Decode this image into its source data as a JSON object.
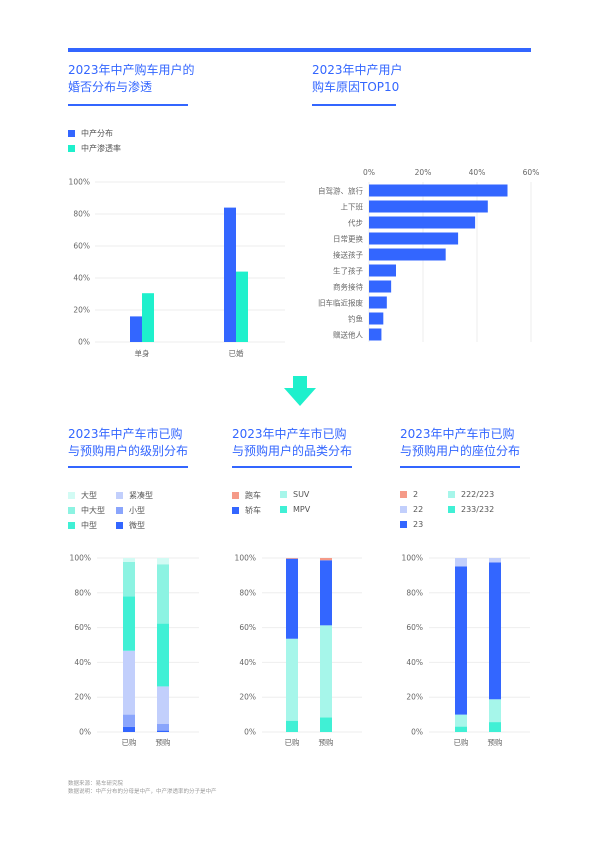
{
  "colors": {
    "blue": "#3366ff",
    "teal": "#1ef0cc",
    "mid_teal": "#8cf3e2",
    "light_teal": "#a6f6ea",
    "pale_teal": "#d2fbf4",
    "lavender": "#c2cffc",
    "mid_blue": "#8aa5fc",
    "salmon": "#f59a88",
    "grid": "#eeeeee"
  },
  "titles": {
    "c1": [
      "2023年中产购车用户的",
      "婚否分布与渗透"
    ],
    "c2": [
      "2023年中产用户",
      "购车原因TOP10"
    ],
    "c3": [
      "2023年中产车市已购",
      "与预购用户的级别分布"
    ],
    "c4": [
      "2023年中产车市已购",
      "与预购用户的品类分布"
    ],
    "c5": [
      "2023年中产车市已购",
      "与预购用户的座位分布"
    ]
  },
  "footer": {
    "source": "数据来源：易车研究院",
    "note": "数据说明：中产分布的分母是中产，中产渗透率的分子是中产"
  },
  "chart_data": [
    {
      "type": "bar",
      "title": "2023年中产购车用户的婚否分布与渗透",
      "categories": [
        "单身",
        "已婚"
      ],
      "series": [
        {
          "name": "中产分布",
          "color": "#3366ff",
          "values": [
            16,
            84
          ]
        },
        {
          "name": "中产渗透率",
          "color": "#1ef0cc",
          "values": [
            30.5,
            44
          ]
        }
      ],
      "ylim": [
        0,
        100
      ],
      "yticks": [
        "0%",
        "20%",
        "40%",
        "60%",
        "80%",
        "100%"
      ],
      "legend": "top-left",
      "grid": true
    },
    {
      "type": "bar",
      "orientation": "horizontal",
      "title": "2023年中产用户购车原因TOP10",
      "categories": [
        "自驾游、旅行",
        "上下班",
        "代步",
        "日常更换",
        "接送孩子",
        "生了孩子",
        "商务接待",
        "旧车临近报废",
        "钓鱼",
        "赠送他人"
      ],
      "values": [
        51.3,
        44,
        39.3,
        33,
        28.4,
        10,
        8.2,
        6.6,
        5.3,
        4.6
      ],
      "xlim": [
        0,
        60
      ],
      "xticks": [
        "0%",
        "20%",
        "40%",
        "60%"
      ],
      "grid": true
    },
    {
      "type": "bar",
      "stacked": true,
      "title": "2023年中产车市已购与预购用户的级别分布",
      "categories": [
        "已购",
        "预购"
      ],
      "series": [
        {
          "name": "微型",
          "color": "#3366ff",
          "values": [
            2.9,
            0.8
          ]
        },
        {
          "name": "小型",
          "color": "#8aa5fc",
          "values": [
            7.1,
            3.8
          ]
        },
        {
          "name": "紧凑型",
          "color": "#c2cffc",
          "values": [
            36.7,
            21.6
          ]
        },
        {
          "name": "中型",
          "color": "#40f0d5",
          "values": [
            31.3,
            36.1
          ]
        },
        {
          "name": "中大型",
          "color": "#8cf3e2",
          "values": [
            19.7,
            34.1
          ]
        },
        {
          "name": "大型",
          "color": "#d2fbf4",
          "values": [
            2.3,
            3.6
          ]
        }
      ],
      "legend_order": [
        "大型",
        "紧凑型",
        "中大型",
        "小型",
        "中型",
        "微型"
      ],
      "ylim": [
        0,
        100
      ],
      "yticks": [
        "0%",
        "20%",
        "40%",
        "60%",
        "80%",
        "100%"
      ]
    },
    {
      "type": "bar",
      "stacked": true,
      "title": "2023年中产车市已购与预购用户的品类分布",
      "categories": [
        "已购",
        "预购"
      ],
      "series": [
        {
          "name": "MPV",
          "color": "#40f0d5",
          "values": [
            6.5,
            8.4
          ]
        },
        {
          "name": "SUV",
          "color": "#a6f6ea",
          "values": [
            47.1,
            52.9
          ]
        },
        {
          "name": "轿车",
          "color": "#3366ff",
          "values": [
            46,
            37.4
          ]
        },
        {
          "name": "跑车",
          "color": "#f59a88",
          "values": [
            0.4,
            1.3
          ]
        }
      ],
      "legend_order": [
        "跑车",
        "SUV",
        "轿车",
        "MPV"
      ],
      "ylim": [
        0,
        100
      ],
      "yticks": [
        "0%",
        "20%",
        "40%",
        "60%",
        "80%",
        "100%"
      ]
    },
    {
      "type": "bar",
      "stacked": true,
      "title": "2023年中产车市已购与预购用户的座位分布",
      "categories": [
        "已购",
        "预购"
      ],
      "series": [
        {
          "name": "233/232",
          "color": "#40f0d5",
          "values": [
            3.1,
            5.7
          ]
        },
        {
          "name": "222/223",
          "color": "#a6f6ea",
          "values": [
            6.9,
            13.1
          ]
        },
        {
          "name": "23",
          "color": "#3366ff",
          "values": [
            85.2,
            78.7
          ]
        },
        {
          "name": "22",
          "color": "#c2cffc",
          "values": [
            4.8,
            2.5
          ]
        },
        {
          "name": "2",
          "color": "#f59a88",
          "values": [
            0,
            0
          ]
        }
      ],
      "legend_order": [
        "2",
        "222/223",
        "22",
        "233/232",
        "23"
      ],
      "ylim": [
        0,
        100
      ],
      "yticks": [
        "0%",
        "20%",
        "40%",
        "60%",
        "80%",
        "100%"
      ]
    }
  ]
}
